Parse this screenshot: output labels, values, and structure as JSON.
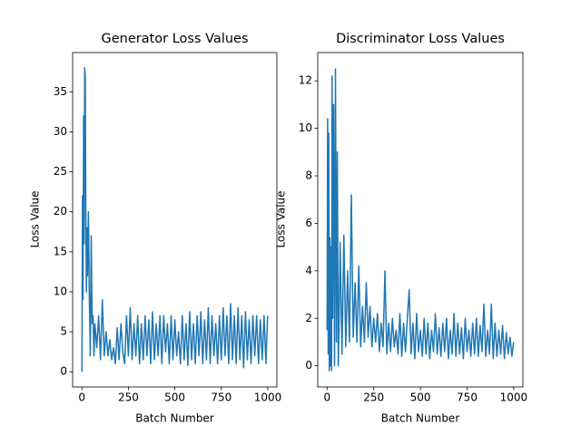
{
  "chart_data": [
    {
      "type": "line",
      "title": "Generator Loss Values",
      "xlabel": "Batch Number",
      "ylabel": "Loss Value",
      "color": "#1f77b4",
      "x": [
        0,
        3,
        6,
        9,
        12,
        15,
        18,
        21,
        24,
        27,
        30,
        35,
        40,
        45,
        50,
        55,
        60,
        65,
        70,
        80,
        90,
        100,
        110,
        120,
        130,
        140,
        150,
        160,
        170,
        180,
        190,
        200,
        210,
        220,
        230,
        240,
        250,
        260,
        270,
        280,
        290,
        300,
        310,
        320,
        330,
        340,
        350,
        360,
        370,
        380,
        390,
        400,
        410,
        420,
        430,
        440,
        450,
        460,
        470,
        480,
        490,
        500,
        510,
        520,
        530,
        540,
        550,
        560,
        570,
        580,
        590,
        600,
        610,
        620,
        630,
        640,
        650,
        660,
        670,
        680,
        690,
        700,
        710,
        720,
        730,
        740,
        750,
        760,
        770,
        780,
        790,
        800,
        810,
        820,
        830,
        840,
        850,
        860,
        870,
        880,
        890,
        900,
        910,
        920,
        930,
        940,
        950,
        960,
        970,
        980,
        990,
        999
      ],
      "values": [
        0,
        22,
        9,
        32,
        16,
        38,
        37,
        20,
        10,
        18,
        12,
        20,
        9,
        2,
        17,
        6,
        7,
        2,
        6,
        3,
        7,
        1.5,
        9,
        2,
        5,
        2,
        4,
        1.5,
        3,
        1,
        5.5,
        1.5,
        6,
        2.5,
        1,
        7,
        2,
        8,
        1.5,
        6,
        2,
        7,
        1,
        6,
        1.5,
        7,
        2,
        6.5,
        1,
        7.5,
        1.5,
        6,
        2,
        7,
        1,
        7,
        2.5,
        6,
        1,
        7,
        1.5,
        6.5,
        2,
        5,
        1,
        7,
        1.5,
        6,
        0.8,
        7.5,
        1.5,
        6,
        1,
        7,
        2,
        7.5,
        1,
        6.5,
        1.5,
        8,
        1,
        7,
        2,
        6,
        1,
        7,
        1.5,
        8,
        2,
        7,
        1,
        8.5,
        1.5,
        7,
        1,
        8,
        1.5,
        7,
        0.5,
        7.5,
        1.5,
        6.5,
        1,
        7,
        2,
        7,
        1,
        6.5,
        1.5,
        7,
        1,
        7
      ],
      "xlim": [
        -50,
        1049
      ],
      "ylim": [
        -1.9,
        39.9
      ],
      "xticks": [
        0,
        250,
        500,
        750,
        1000
      ],
      "yticks": [
        0,
        5,
        10,
        15,
        20,
        25,
        30,
        35
      ]
    },
    {
      "type": "line",
      "title": "Discriminator Loss Values",
      "xlabel": "Batch Number",
      "ylabel": "Loss Value",
      "color": "#1f77b4",
      "x": [
        0,
        3,
        6,
        9,
        12,
        15,
        18,
        21,
        24,
        27,
        30,
        35,
        40,
        45,
        50,
        55,
        60,
        65,
        70,
        80,
        90,
        100,
        110,
        120,
        130,
        140,
        150,
        160,
        170,
        180,
        190,
        200,
        210,
        220,
        230,
        240,
        250,
        260,
        270,
        280,
        290,
        300,
        310,
        320,
        330,
        340,
        350,
        360,
        370,
        380,
        390,
        400,
        410,
        420,
        430,
        440,
        450,
        460,
        470,
        480,
        490,
        500,
        510,
        520,
        530,
        540,
        550,
        560,
        570,
        580,
        590,
        600,
        610,
        620,
        630,
        640,
        650,
        660,
        670,
        680,
        690,
        700,
        710,
        720,
        730,
        740,
        750,
        760,
        770,
        780,
        790,
        800,
        810,
        820,
        830,
        840,
        850,
        860,
        870,
        880,
        890,
        900,
        910,
        920,
        930,
        940,
        950,
        960,
        970,
        980,
        990,
        999
      ],
      "values": [
        1.5,
        10.4,
        0.5,
        9.8,
        -0.2,
        5.4,
        0,
        5,
        -0.2,
        12.2,
        2,
        11,
        0,
        12.5,
        1,
        9,
        0,
        2,
        5.2,
        0.5,
        5.5,
        0.8,
        4,
        1,
        7.2,
        1.2,
        3.5,
        1,
        4.2,
        0.8,
        2.5,
        1,
        3.5,
        1.2,
        2.5,
        0.8,
        2,
        1,
        2.2,
        0.6,
        1.8,
        0.8,
        4,
        0.5,
        1.8,
        0.6,
        2,
        0.8,
        1.5,
        0.5,
        2.2,
        0.4,
        1.8,
        0.6,
        2,
        3.2,
        0.5,
        1.8,
        0.3,
        2.2,
        0.6,
        1.5,
        0.4,
        2,
        0.5,
        1.8,
        0.3,
        1.5,
        0.6,
        2.2,
        0.5,
        1.6,
        0.4,
        1.8,
        0.6,
        2,
        0.3,
        1.5,
        0.5,
        2.2,
        0.4,
        1.8,
        0.5,
        1.6,
        0.3,
        2,
        0.6,
        1.5,
        0.4,
        1.8,
        0.5,
        2,
        0.4,
        1.7,
        0.6,
        2.6,
        0.4,
        1.5,
        0.5,
        2.6,
        0.3,
        1.8,
        0.4,
        1.5,
        0.5,
        1.7,
        0.3,
        1.4,
        0.5,
        1.2,
        0.4,
        1.0
      ],
      "xlim": [
        -50,
        1049
      ],
      "ylim": [
        -0.89,
        13.19
      ],
      "xticks": [
        0,
        250,
        500,
        750,
        1000
      ],
      "yticks": [
        0,
        2,
        4,
        6,
        8,
        10,
        12
      ]
    }
  ]
}
